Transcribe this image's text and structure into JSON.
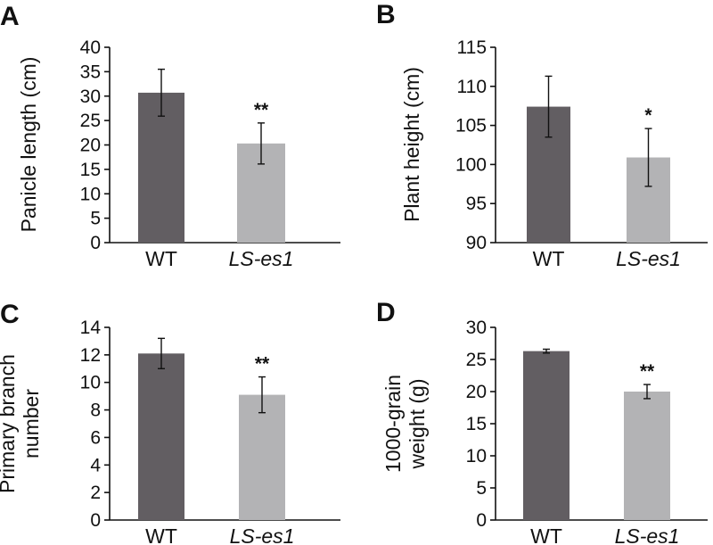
{
  "chart_data": [
    {
      "type": "bar",
      "panel": "A",
      "ylabel": "Panicle length (cm)",
      "categories": [
        "WT",
        "LS-es1"
      ],
      "values": [
        30.7,
        20.3
      ],
      "errors": [
        4.8,
        4.2
      ],
      "significance": [
        "",
        "**"
      ],
      "ylim": [
        0,
        40
      ],
      "yticks": [
        0,
        5,
        10,
        15,
        20,
        25,
        30,
        35,
        40
      ],
      "colors": [
        "#625e62",
        "#b3b3b5"
      ]
    },
    {
      "type": "bar",
      "panel": "B",
      "ylabel": "Plant height (cm)",
      "categories": [
        "WT",
        "LS-es1"
      ],
      "values": [
        107.4,
        100.9
      ],
      "errors": [
        3.9,
        3.7
      ],
      "significance": [
        "",
        "*"
      ],
      "ylim": [
        90,
        115
      ],
      "yticks": [
        90,
        95,
        100,
        105,
        110,
        115
      ],
      "colors": [
        "#625e62",
        "#b3b3b5"
      ]
    },
    {
      "type": "bar",
      "panel": "C",
      "ylabel": [
        "Primary branch",
        "number"
      ],
      "categories": [
        "WT",
        "LS-es1"
      ],
      "values": [
        12.1,
        9.1
      ],
      "errors": [
        1.1,
        1.3
      ],
      "significance": [
        "",
        "**"
      ],
      "ylim": [
        0,
        14
      ],
      "yticks": [
        0,
        2,
        4,
        6,
        8,
        10,
        12,
        14
      ],
      "colors": [
        "#625e62",
        "#b3b3b5"
      ]
    },
    {
      "type": "bar",
      "panel": "D",
      "ylabel": [
        "1000-grain",
        "weight (g)"
      ],
      "categories": [
        "WT",
        "LS-es1"
      ],
      "values": [
        26.3,
        20.0
      ],
      "errors": [
        0.3,
        1.1
      ],
      "significance": [
        "",
        "**"
      ],
      "ylim": [
        0,
        30
      ],
      "yticks": [
        0,
        5,
        10,
        15,
        20,
        25,
        30
      ],
      "colors": [
        "#625e62",
        "#b3b3b5"
      ]
    }
  ]
}
